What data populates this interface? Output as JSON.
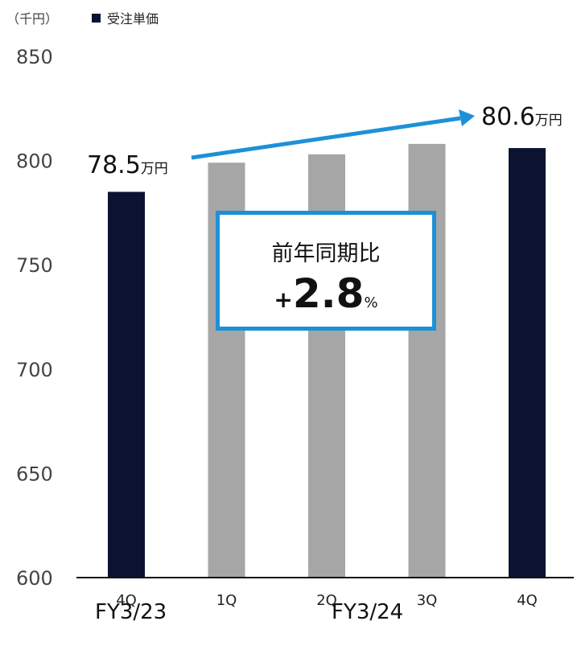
{
  "unit_label": "（千円）",
  "legend": {
    "label": "受注単価",
    "color": "#0b1331"
  },
  "chart_data": {
    "type": "bar",
    "categories": [
      "4Q",
      "1Q",
      "2Q",
      "3Q",
      "4Q"
    ],
    "groups": [
      {
        "label": "FY3/23",
        "categories": [
          0
        ]
      },
      {
        "label": "FY3/24",
        "categories": [
          1,
          2,
          3,
          4
        ]
      }
    ],
    "series": [
      {
        "name": "受注単価",
        "values": [
          785,
          799,
          803,
          808,
          806
        ],
        "colors": [
          "#0b1331",
          "#a6a6a6",
          "#a6a6a6",
          "#a6a6a6",
          "#0b1331"
        ]
      }
    ],
    "ylim": [
      600,
      850
    ],
    "yticks": [
      600,
      650,
      700,
      750,
      800,
      850
    ],
    "grid": false,
    "legend_position": "top-left",
    "annotations": {
      "start": {
        "value": "78.5",
        "unit": "万円"
      },
      "end": {
        "value": "80.6",
        "unit": "万円"
      },
      "arrow_color": "#1e90d8"
    },
    "callout": {
      "title": "前年同期比",
      "sign": "+",
      "value": "2.8",
      "unit": "%"
    }
  }
}
